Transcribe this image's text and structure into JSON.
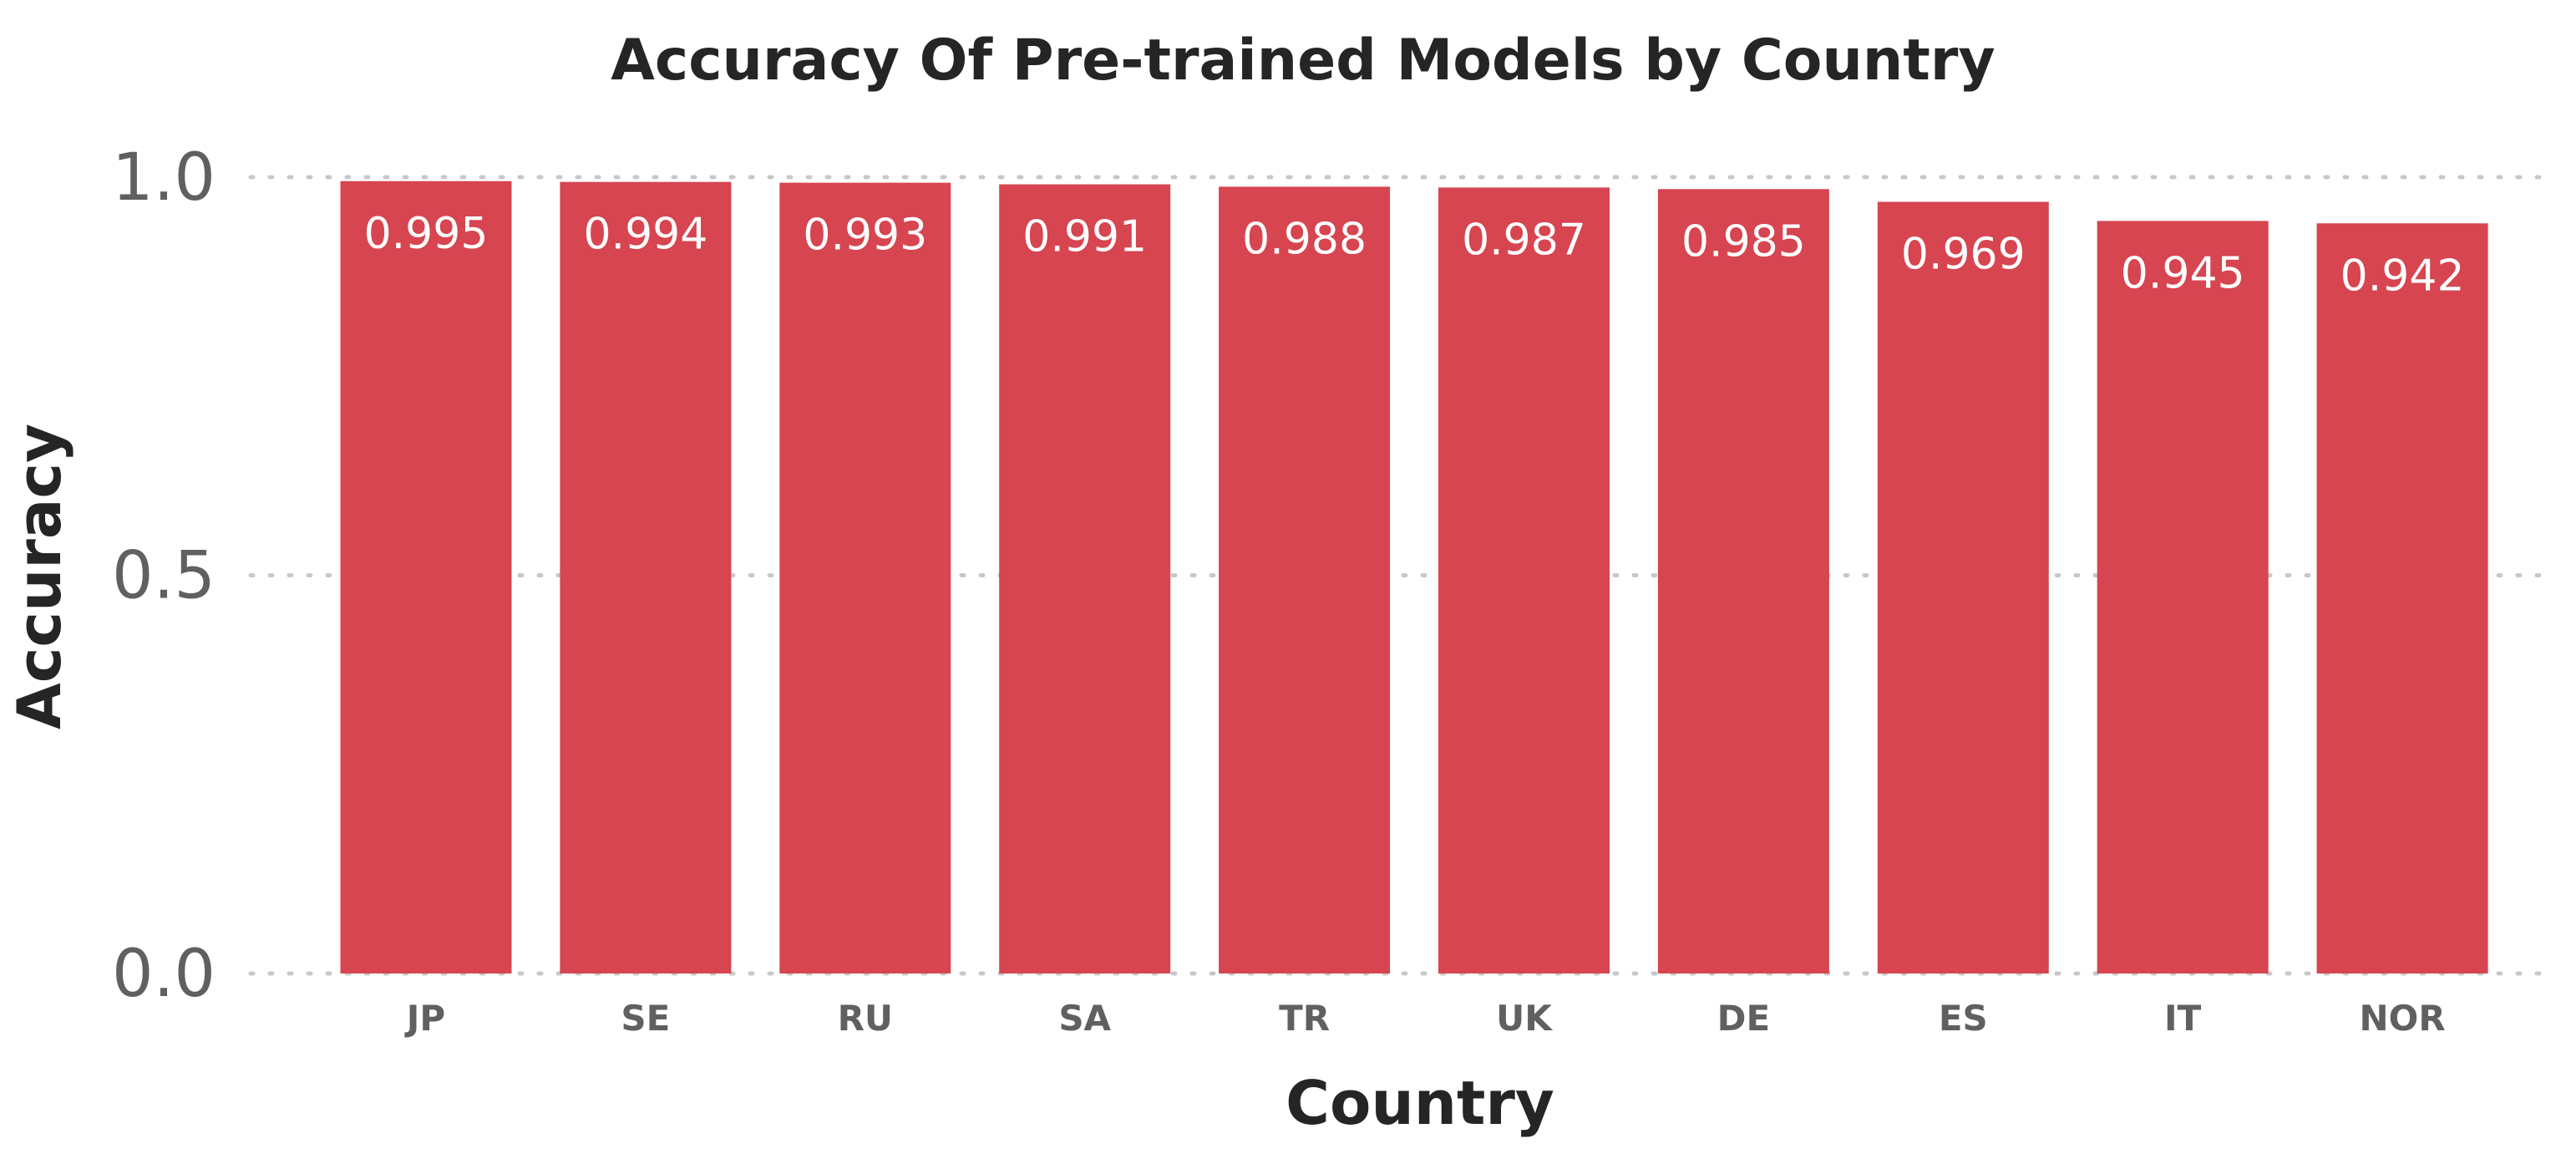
{
  "chart_data": {
    "type": "bar",
    "title": "Accuracy Of Pre-trained Models by Country",
    "xlabel": "Country",
    "ylabel": "Accuracy",
    "categories": [
      "JP",
      "SE",
      "RU",
      "SA",
      "TR",
      "UK",
      "DE",
      "ES",
      "IT",
      "NOR"
    ],
    "values": [
      0.995,
      0.994,
      0.993,
      0.991,
      0.988,
      0.987,
      0.985,
      0.969,
      0.945,
      0.942
    ],
    "data_labels": [
      "0.995",
      "0.994",
      "0.993",
      "0.991",
      "0.988",
      "0.987",
      "0.985",
      "0.969",
      "0.945",
      "0.942"
    ],
    "ylim": [
      0,
      1.0
    ],
    "yticks": [
      0.0,
      0.5,
      1.0
    ],
    "ytick_labels": [
      "0.0",
      "0.5",
      "1.0"
    ],
    "grid": true,
    "bar_color": "#d64550"
  }
}
